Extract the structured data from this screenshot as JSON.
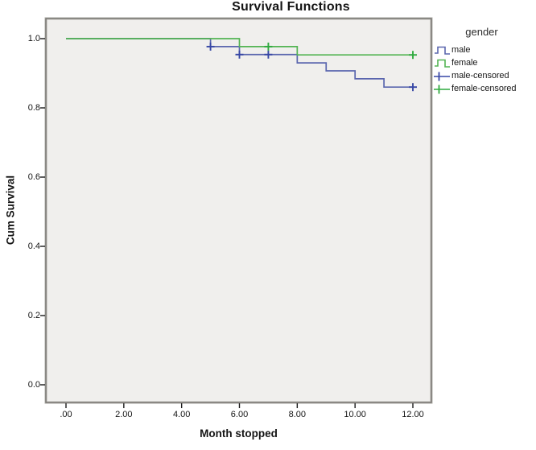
{
  "title": "Survival Functions",
  "axes": {
    "x": {
      "label": "Month stopped",
      "ticks": [
        ".00",
        "2.00",
        "4.00",
        "6.00",
        "8.00",
        "10.00",
        "12.00"
      ]
    },
    "y": {
      "label": "Cum Survival",
      "ticks": [
        "0.0",
        "0.2",
        "0.4",
        "0.6",
        "0.8",
        "1.0"
      ]
    }
  },
  "legend": {
    "title": "gender",
    "items": [
      {
        "label": "male",
        "type": "step",
        "color": "#5a66ae"
      },
      {
        "label": "female",
        "type": "step",
        "color": "#53b453"
      },
      {
        "label": "male-censored",
        "type": "plus",
        "color": "#3747a5"
      },
      {
        "label": "female-censored",
        "type": "plus",
        "color": "#2faa3e"
      }
    ]
  },
  "chart_data": {
    "type": "line",
    "subtype": "kaplan-meier-step",
    "title": "Survival Functions",
    "xlabel": "Month stopped",
    "ylabel": "Cum Survival",
    "xlim": [
      0,
      12
    ],
    "ylim": [
      0,
      1
    ],
    "x_ticks": [
      0,
      2,
      4,
      6,
      8,
      10,
      12
    ],
    "y_ticks": [
      0,
      0.2,
      0.4,
      0.6,
      0.8,
      1.0
    ],
    "grid": false,
    "legend_position": "right",
    "plot_bg_color": "#f0efed",
    "series": [
      {
        "name": "male",
        "color": "#5a66ae",
        "marker_color": "#3747a5",
        "step_points": [
          [
            0,
            1.0
          ],
          [
            5,
            0.977
          ],
          [
            6,
            0.954
          ],
          [
            8,
            0.93
          ],
          [
            9,
            0.907
          ],
          [
            10,
            0.884
          ],
          [
            11,
            0.86
          ],
          [
            12,
            0.86
          ]
        ],
        "censored_points": [
          [
            5,
            0.977
          ],
          [
            6,
            0.954
          ],
          [
            7,
            0.954
          ],
          [
            12,
            0.86
          ]
        ]
      },
      {
        "name": "female",
        "color": "#53b453",
        "marker_color": "#2faa3e",
        "step_points": [
          [
            0,
            1.0
          ],
          [
            6,
            0.977
          ],
          [
            8,
            0.953
          ],
          [
            12,
            0.953
          ]
        ],
        "censored_points": [
          [
            7,
            0.977
          ],
          [
            12,
            0.953
          ]
        ]
      }
    ]
  }
}
